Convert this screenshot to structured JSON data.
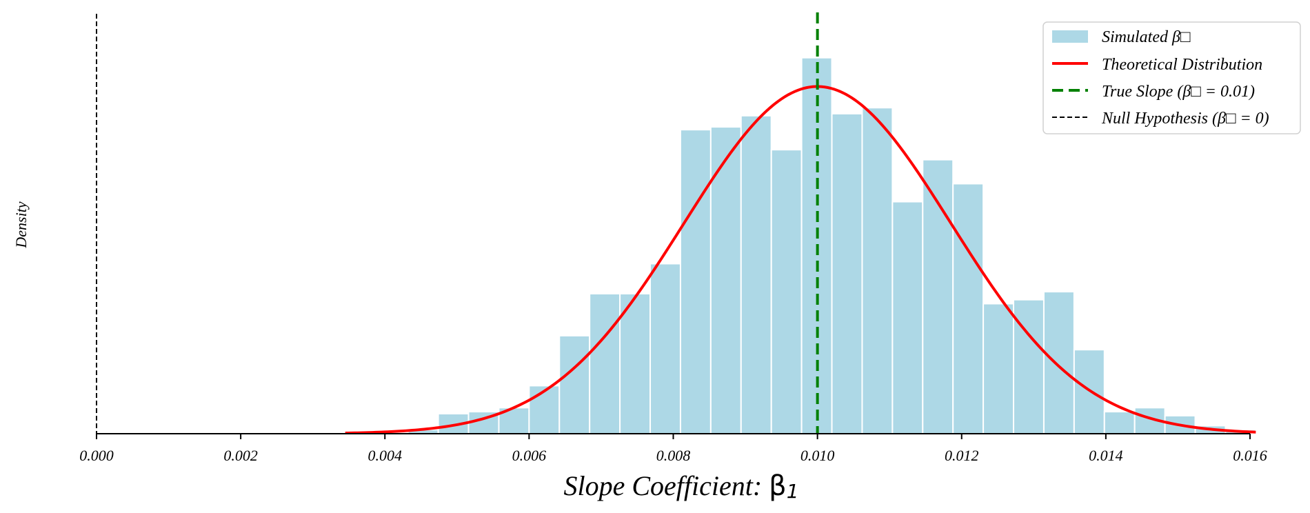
{
  "chart_data": {
    "type": "bar",
    "title": "",
    "xlabel": "Slope Coefficient: ",
    "xlabel_symbol": "β",
    "xlabel_subscript": "1",
    "ylabel": "Density",
    "xlim": [
      0.0,
      0.016
    ],
    "ylim": [
      0,
      1
    ],
    "x_ticks": [
      "0.000",
      "0.002",
      "0.004",
      "0.006",
      "0.008",
      "0.010",
      "0.012",
      "0.014",
      "0.016"
    ],
    "histogram": {
      "name": "Simulated β□",
      "bin_start": 0.00432,
      "bin_width": 0.00042,
      "counts": [
        1.0,
        5.0,
        5.5,
        6.5,
        12.0,
        24.5,
        35.0,
        35.0,
        42.5,
        76.0,
        76.7,
        79.5,
        71.0,
        94.0,
        80.0,
        81.5,
        58.0,
        68.5,
        62.5,
        32.5,
        33.5,
        35.5,
        21.0,
        5.5,
        6.5,
        4.5,
        2.0,
        1.0
      ],
      "color": "#ADD8E6"
    },
    "theoretical": {
      "name": "Theoretical Distribution",
      "mean": 0.01,
      "sd": 0.00185,
      "x_range": [
        0.00345,
        0.01608
      ],
      "peak_count": 86.8,
      "color": "#FF0000"
    },
    "true_slope": {
      "name": "True Slope (β□ = 0.01)",
      "x": 0.01,
      "color": "#008000"
    },
    "null_hypothesis": {
      "name": "Null Hypothesis (β□ = 0)",
      "x": 0.0,
      "color": "#000000"
    },
    "count_axis_max": 100.5,
    "legend_position": "top-right",
    "grid": false
  }
}
